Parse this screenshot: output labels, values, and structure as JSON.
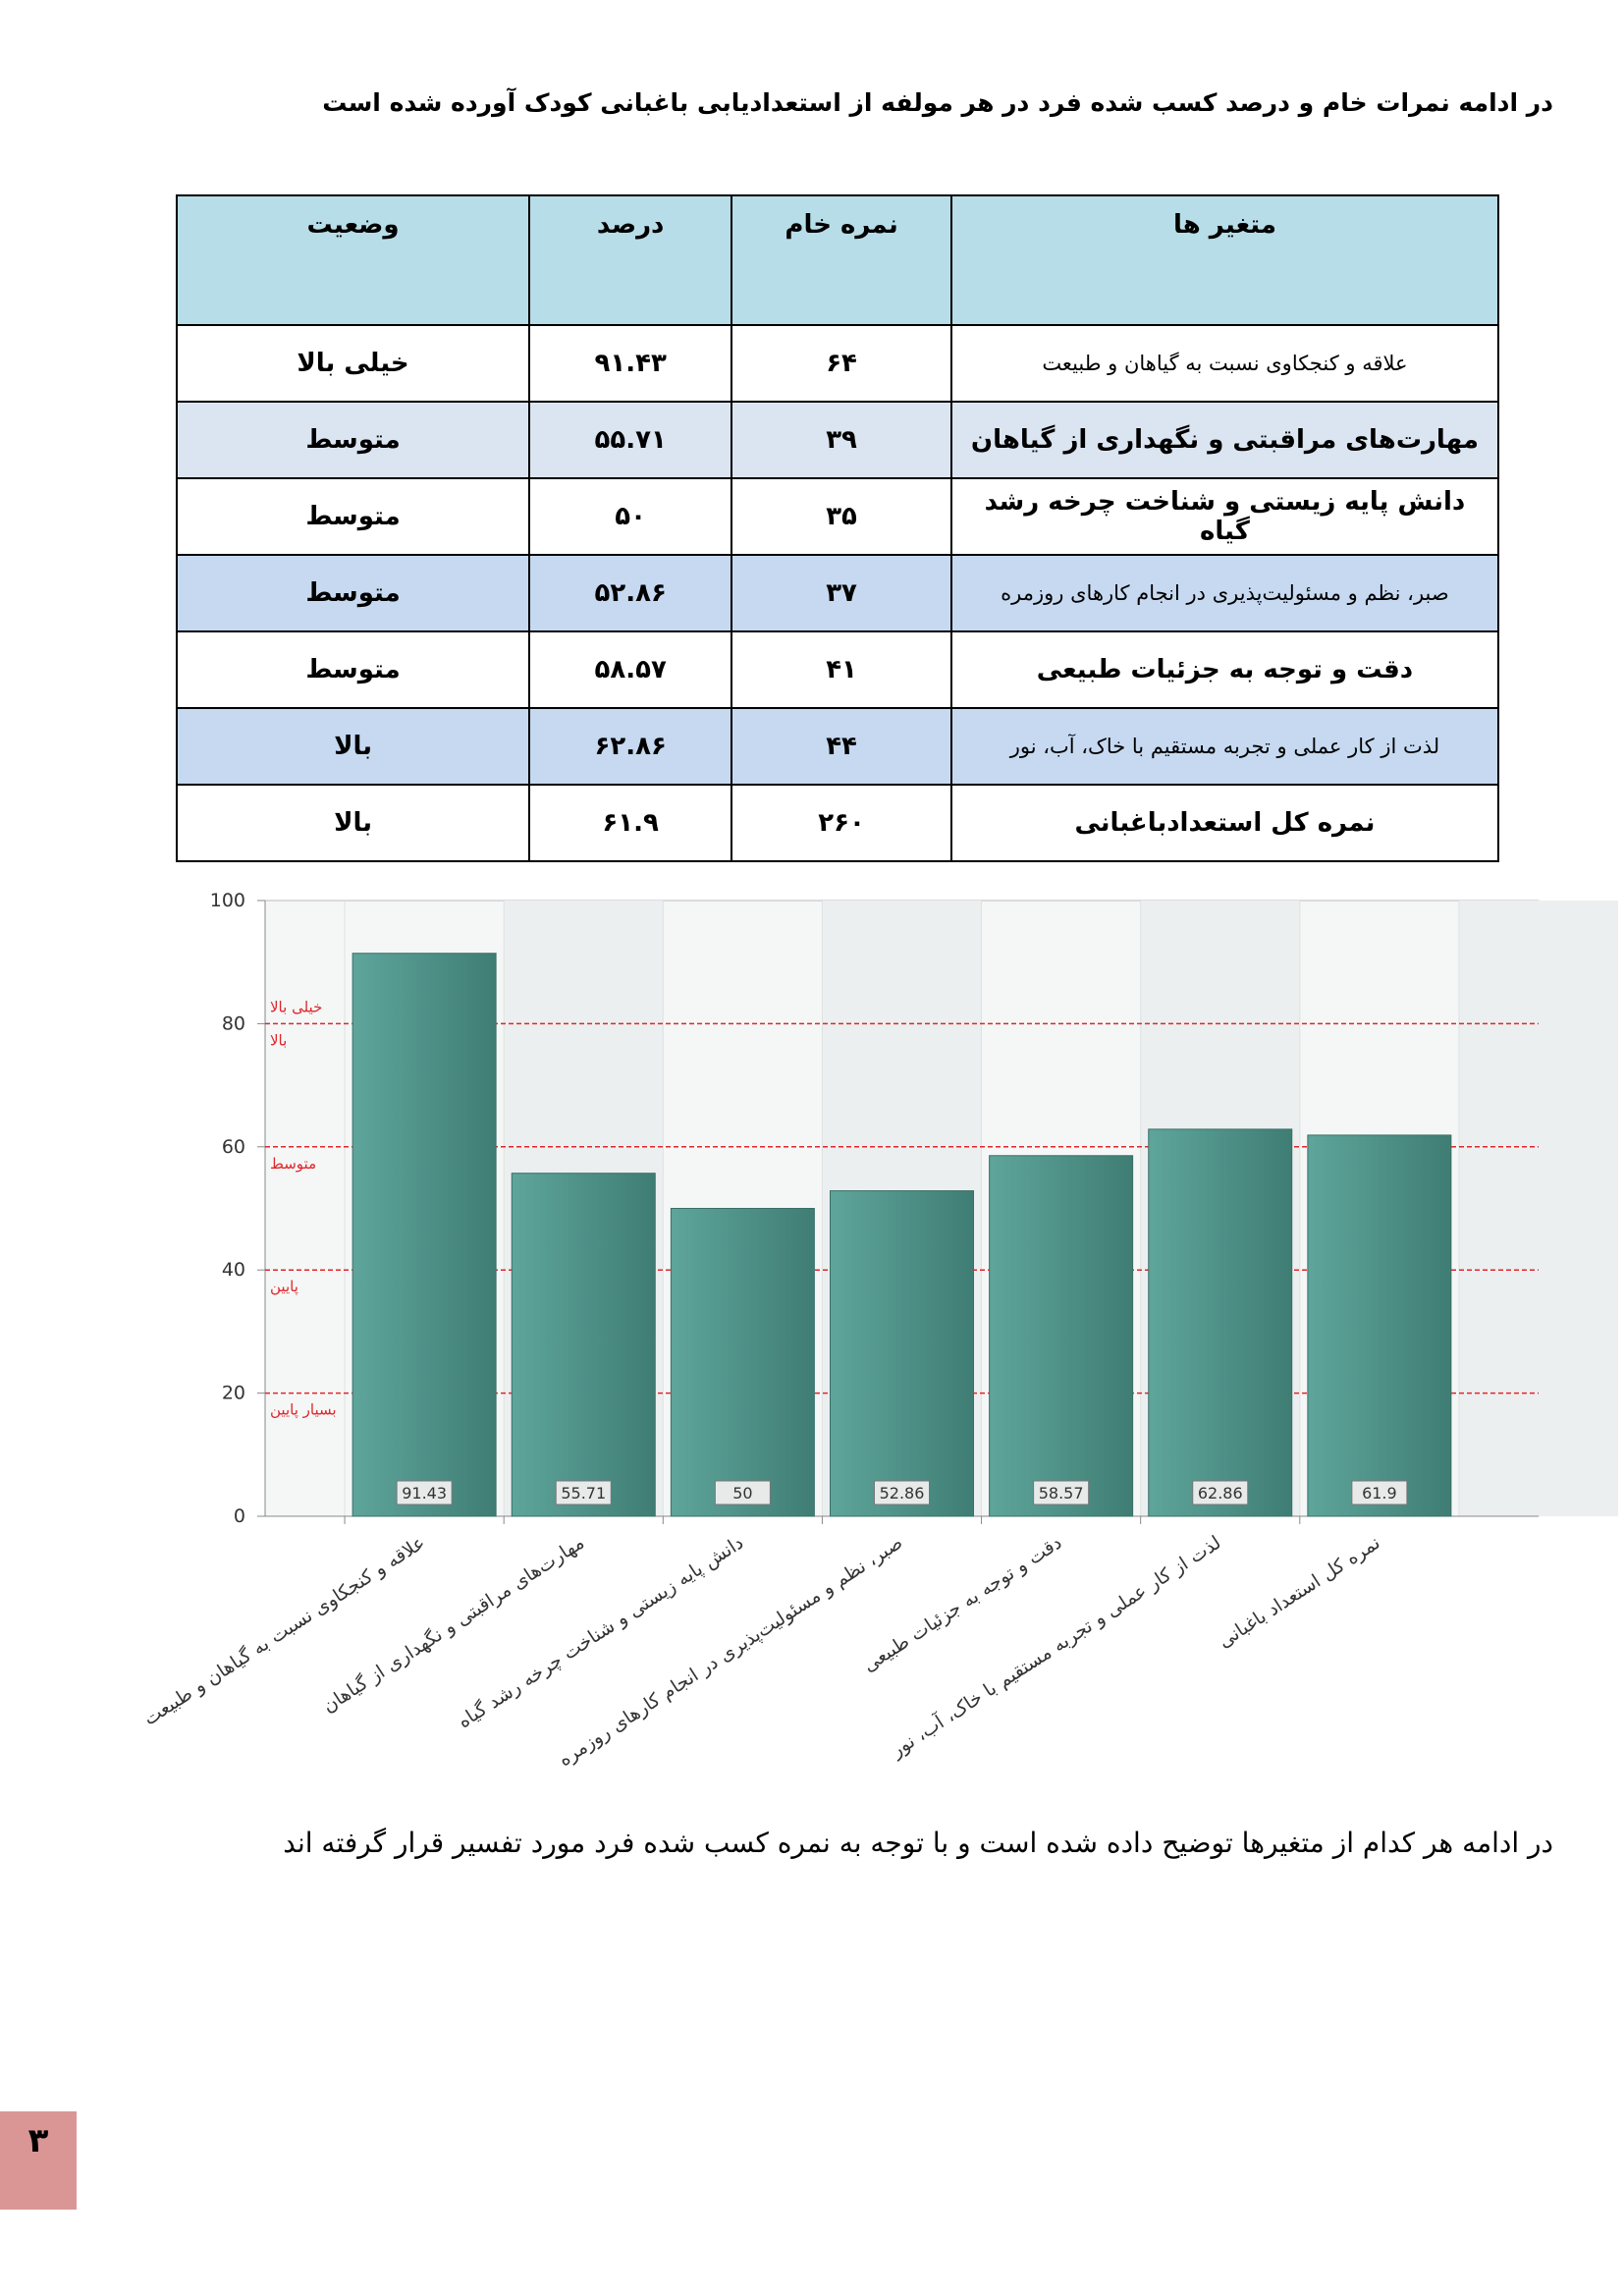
{
  "intro": "در ادامه نمرات خام و درصد کسب شده فرد در هر مولفه از استعدادیابی باغبانی کودک آورده شده است",
  "table": {
    "header": [
      "متغیر ها",
      "نمره خام",
      "درصد",
      "وضعیت"
    ],
    "rows": [
      [
        "علاقه و کنجکاوی نسبت به گیاهان و طبیعت",
        "۶۴",
        "۹۱.۴۳",
        "خیلی بالا"
      ],
      [
        "مهارت‌های مراقبتی و نگهداری از گیاهان",
        "۳۹",
        "۵۵.۷۱",
        "متوسط"
      ],
      [
        "دانش پایه زیستی و شناخت چرخه رشد گیاه",
        "۳۵",
        "۵۰",
        "متوسط"
      ],
      [
        "صبر، نظم و مسئولیت‌پذیری در انجام کارهای روزمره",
        "۳۷",
        "۵۲.۸۶",
        "متوسط"
      ],
      [
        "دقت و توجه به جزئیات طبیعی",
        "۴۱",
        "۵۸.۵۷",
        "متوسط"
      ],
      [
        "لذت از کار عملی و تجربه مستقیم با خاک، آب، نور",
        "۴۴",
        "۶۲.۸۶",
        "بالا"
      ],
      [
        "نمره کل استعدادباغبانی",
        "۲۶۰",
        "۶۱.۹",
        "بالا"
      ]
    ]
  },
  "chart_data": {
    "type": "bar",
    "categories": [
      "علاقه و کنجکاوی نسبت به گیاهان و طبیعت",
      "مهارت‌های مراقبتی و نگهداری از گیاهان",
      "دانش پایه زیستی و شناخت چرخه رشد گیاه",
      "صبر، نظم و مسئولیت‌پذیری در انجام کارهای روزمره",
      "دقت و توجه به جزئیات طبیعی",
      "لذت از کار عملی و تجربه مستقیم با خاک، آب، نور",
      "نمره کل استعداد باغبانی"
    ],
    "values": [
      91.43,
      55.71,
      50,
      52.86,
      58.57,
      62.86,
      61.9
    ],
    "color": "#5ea59b",
    "ylim": [
      0,
      100
    ],
    "yticks": [
      0,
      20,
      40,
      60,
      80,
      100
    ],
    "reference_lines": [
      {
        "value": 20,
        "label": "بسیار پایین"
      },
      {
        "value": 40,
        "label": "پایین"
      },
      {
        "value": 60,
        "label": "متوسط"
      },
      {
        "value": 80,
        "label": "بالا"
      }
    ],
    "top_band_label": "خیلی بالا",
    "reference_color": "#e0262b"
  },
  "closing": "در ادامه هر کدام از متغیرها توضیح داده شده است و با توجه به نمره کسب شده فرد مورد تفسیر قرار گرفته اند",
  "page_number": "۳"
}
